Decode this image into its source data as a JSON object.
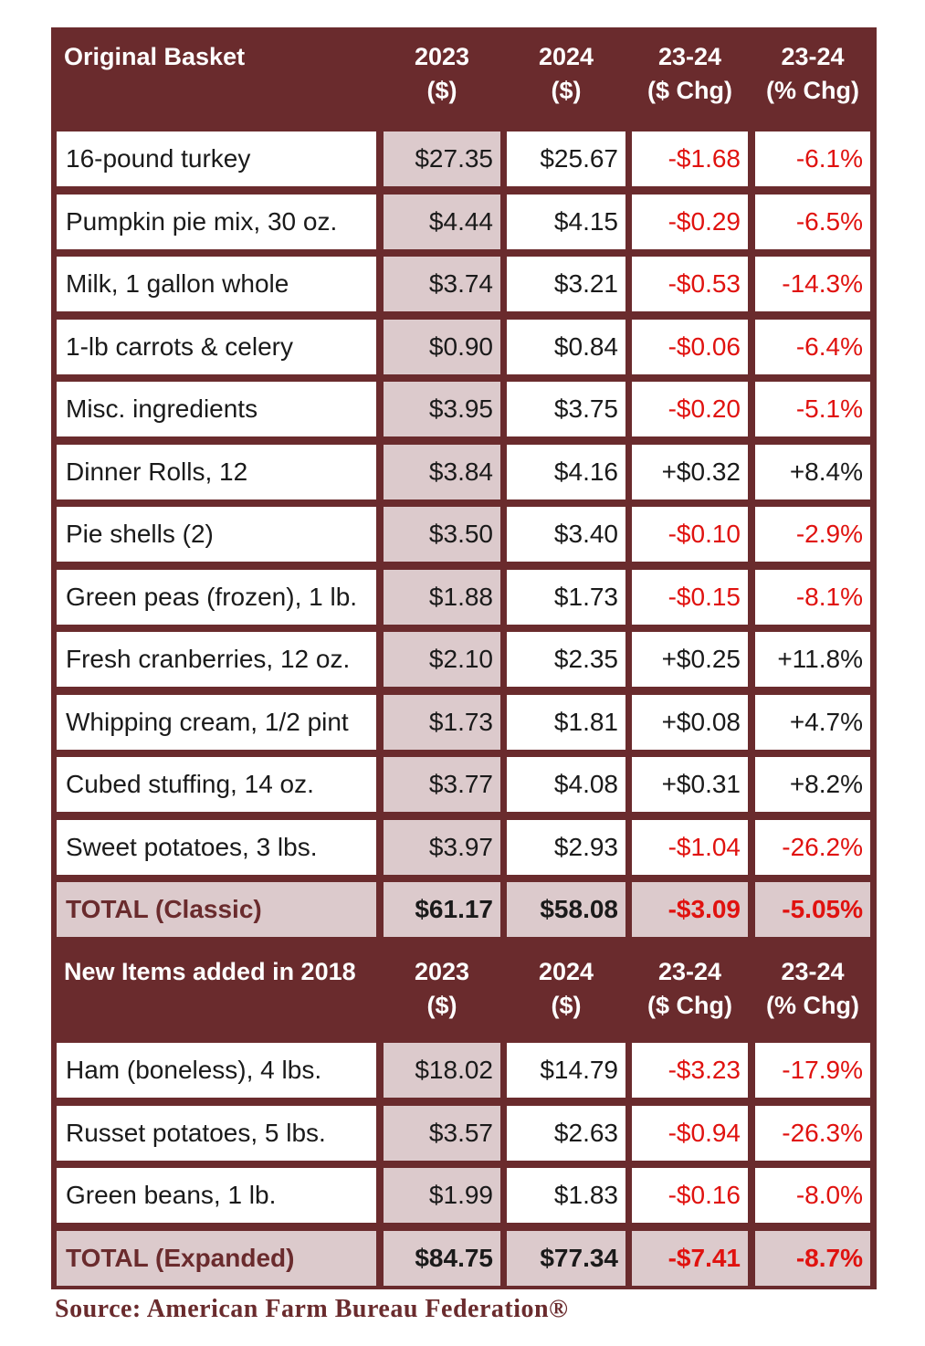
{
  "chart_data": {
    "type": "table",
    "source": "Source: American Farm Bureau Federation®",
    "sections": [
      {
        "headers": [
          "Original Basket",
          "2023 ($)",
          "2024 ($)",
          "23-24 ($ Chg)",
          "23-24 (% Chg)"
        ],
        "header_lines": [
          [
            "Original Basket"
          ],
          [
            "2023",
            "($)"
          ],
          [
            "2024",
            "($)"
          ],
          [
            "23-24",
            "($ Chg)"
          ],
          [
            "23-24",
            "(% Chg)"
          ]
        ],
        "rows": [
          [
            "16-pound turkey",
            "$27.35",
            "$25.67",
            "-$1.68",
            "-6.1%"
          ],
          [
            "Pumpkin pie mix, 30 oz.",
            "$4.44",
            "$4.15",
            "-$0.29",
            "-6.5%"
          ],
          [
            "Milk, 1 gallon whole",
            "$3.74",
            "$3.21",
            "-$0.53",
            "-14.3%"
          ],
          [
            "1-lb carrots & celery",
            "$0.90",
            "$0.84",
            "-$0.06",
            "-6.4%"
          ],
          [
            "Misc. ingredients",
            "$3.95",
            "$3.75",
            "-$0.20",
            "-5.1%"
          ],
          [
            "Dinner Rolls, 12",
            "$3.84",
            "$4.16",
            "+$0.32",
            "+8.4%"
          ],
          [
            "Pie shells (2)",
            "$3.50",
            "$3.40",
            "-$0.10",
            "-2.9%"
          ],
          [
            "Green peas (frozen), 1 lb.",
            "$1.88",
            "$1.73",
            "-$0.15",
            "-8.1%"
          ],
          [
            "Fresh cranberries, 12 oz.",
            "$2.10",
            "$2.35",
            "+$0.25",
            "+11.8%"
          ],
          [
            "Whipping cream, 1/2 pint",
            "$1.73",
            "$1.81",
            "+$0.08",
            "+4.7%"
          ],
          [
            "Cubed stuffing, 14 oz.",
            "$3.77",
            "$4.08",
            "+$0.31",
            "+8.2%"
          ],
          [
            "Sweet potatoes, 3 lbs.",
            "$3.97",
            "$2.93",
            "-$1.04",
            "-26.2%"
          ]
        ],
        "total": [
          "TOTAL (Classic)",
          "$61.17",
          "$58.08",
          "-$3.09",
          "-5.05%"
        ]
      },
      {
        "headers": [
          "New Items added in 2018",
          "2023 ($)",
          "2024 ($)",
          "23-24 ($ Chg)",
          "23-24 (% Chg)"
        ],
        "header_lines": [
          [
            "New Items added in 2018"
          ],
          [
            "2023",
            "($)"
          ],
          [
            "2024",
            "($)"
          ],
          [
            "23-24",
            "($ Chg)"
          ],
          [
            "23-24",
            "(% Chg)"
          ]
        ],
        "rows": [
          [
            "Ham (boneless), 4 lbs.",
            "$18.02",
            "$14.79",
            "-$3.23",
            "-17.9%"
          ],
          [
            "Russet potatoes, 5 lbs.",
            "$3.57",
            "$2.63",
            "-$0.94",
            "-26.3%"
          ],
          [
            "Green beans, 1 lb.",
            "$1.99",
            "$1.83",
            "-$0.16",
            "-8.0%"
          ]
        ],
        "total": [
          "TOTAL (Expanded)",
          "$84.75",
          "$77.34",
          "-$7.41",
          "-8.7%"
        ]
      }
    ]
  },
  "colors": {
    "frame": "#6a2b2d",
    "shaded_cell": "#dccacc",
    "negative_text": "#e0120f",
    "header_text": "#ffffff"
  }
}
